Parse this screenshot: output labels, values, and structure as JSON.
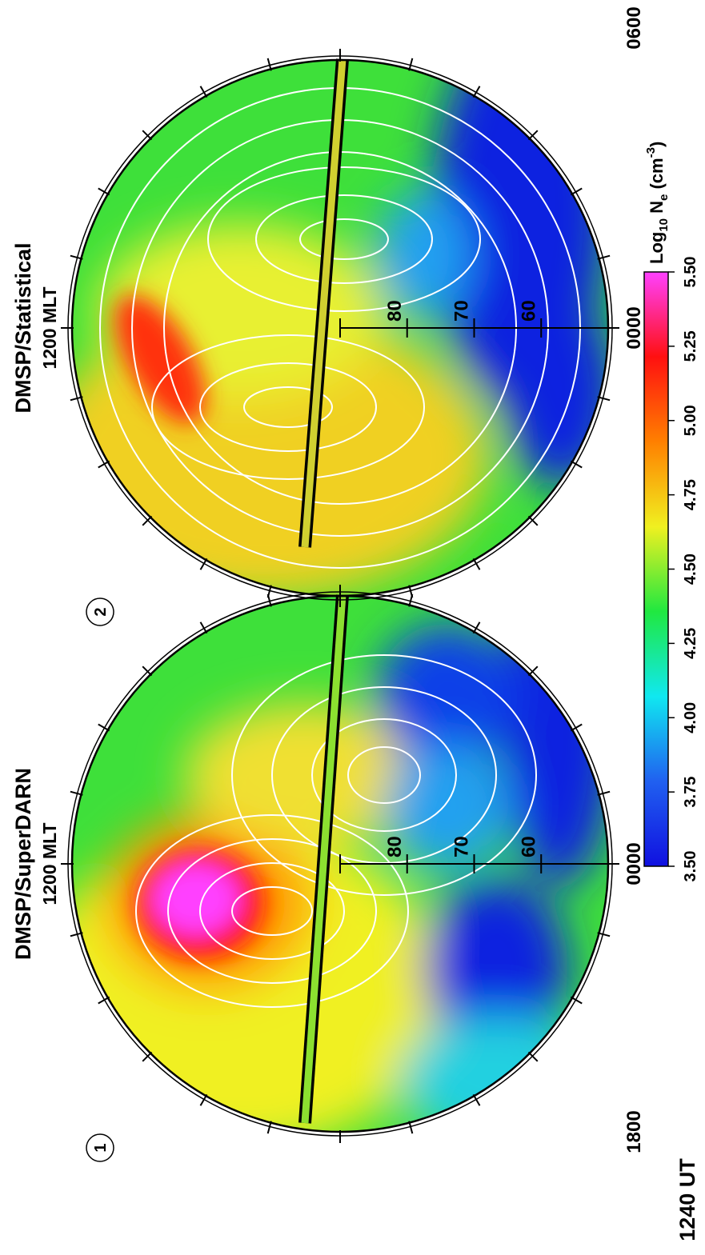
{
  "figure_label": "1240 UT",
  "latitude_range": [
    90,
    50
  ],
  "panels": [
    {
      "number": "1",
      "title": "DMSP/SuperDARN",
      "subtitle": "1200 MLT",
      "left_label": "1800",
      "bottom_label": "0000",
      "lat_labels": [
        80,
        70,
        60
      ]
    },
    {
      "number": "2",
      "title": "DMSP/Statistical",
      "subtitle": "1200 MLT",
      "bottom_label": "0000",
      "right_label": "0600",
      "lat_labels": [
        80,
        70,
        60
      ]
    }
  ],
  "colorbar": {
    "title_main": "Log",
    "title_sub": "10",
    "title_var": " N",
    "title_var_sub": "e",
    "title_unit": " (cm",
    "title_sup": "-3",
    "title_close": ")",
    "lim": [
      3.5,
      5.5
    ],
    "ticks": [
      {
        "value": 3.5,
        "label": "3.50"
      },
      {
        "value": 3.75,
        "label": "3.75"
      },
      {
        "value": 4.0,
        "label": "4.00"
      },
      {
        "value": 4.25,
        "label": "4.25"
      },
      {
        "value": 4.5,
        "label": "4.50"
      },
      {
        "value": 4.75,
        "label": "4.75"
      },
      {
        "value": 5.0,
        "label": "5.00"
      },
      {
        "value": 5.25,
        "label": "5.25"
      },
      {
        "value": 5.5,
        "label": "5.50"
      }
    ],
    "colors": [
      "#1010e0",
      "#2060f0",
      "#10e8f0",
      "#20e840",
      "#f0f020",
      "#ff8000",
      "#ff1010",
      "#ff40ff"
    ]
  }
}
